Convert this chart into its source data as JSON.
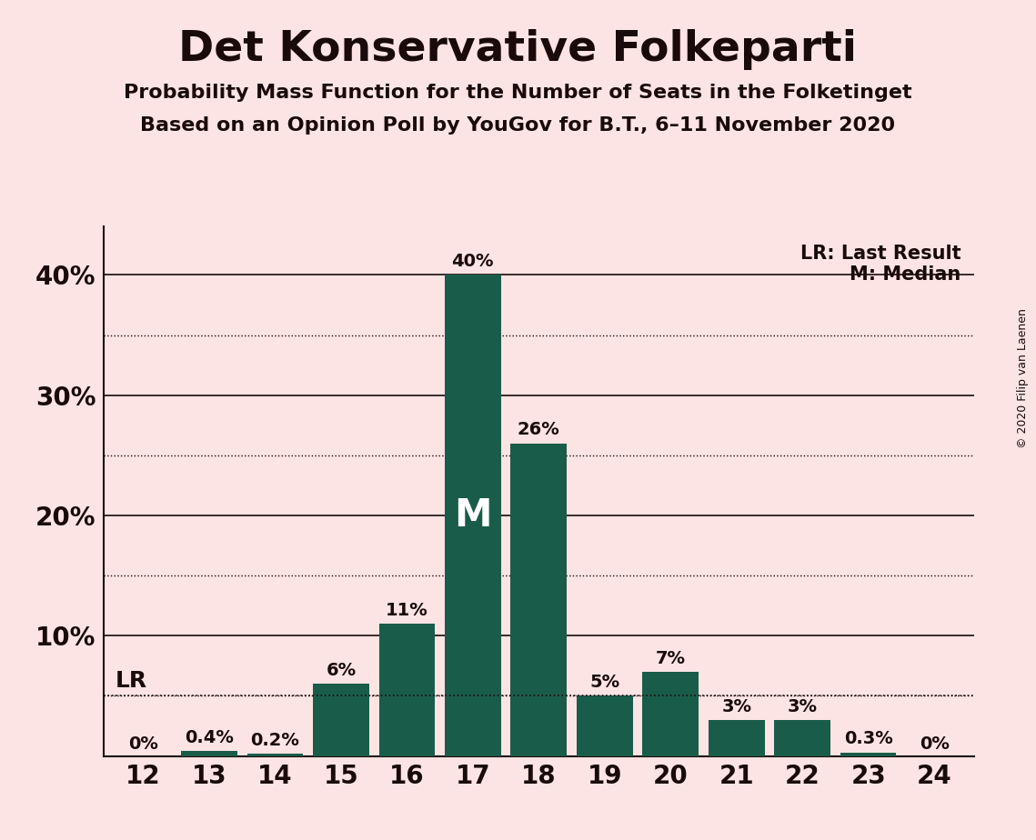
{
  "title": "Det Konservative Folkeparti",
  "subtitle1": "Probability Mass Function for the Number of Seats in the Folketinget",
  "subtitle2": "Based on an Opinion Poll by YouGov for B.T., 6–11 November 2020",
  "copyright": "© 2020 Filip van Laenen",
  "categories": [
    12,
    13,
    14,
    15,
    16,
    17,
    18,
    19,
    20,
    21,
    22,
    23,
    24
  ],
  "values": [
    0.0,
    0.4,
    0.2,
    6.0,
    11.0,
    40.0,
    26.0,
    5.0,
    7.0,
    3.0,
    3.0,
    0.3,
    0.0
  ],
  "labels": [
    "0%",
    "0.4%",
    "0.2%",
    "6%",
    "11%",
    "40%",
    "26%",
    "5%",
    "7%",
    "3%",
    "3%",
    "0.3%",
    "0%"
  ],
  "bar_color": "#1a5c4a",
  "background_color": "#fce4e4",
  "text_color": "#1a0a0a",
  "median_seat": 17,
  "last_result_seat": 12,
  "last_result_value": 5.0,
  "ylim": [
    0,
    44
  ],
  "yticks_major": [
    10,
    20,
    30,
    40
  ],
  "ytick_labels": [
    "10%",
    "20%",
    "30%",
    "40%"
  ],
  "dotted_lines": [
    5,
    15,
    25,
    35
  ],
  "solid_lines": [
    10,
    20,
    30,
    40
  ],
  "lr_label": "LR: Last Result",
  "m_label": "M: Median",
  "title_fontsize": 34,
  "subtitle_fontsize": 16,
  "tick_fontsize": 20,
  "label_fontsize": 14,
  "lr_text_fontsize": 18,
  "m_inside_fontsize": 30,
  "legend_fontsize": 15
}
